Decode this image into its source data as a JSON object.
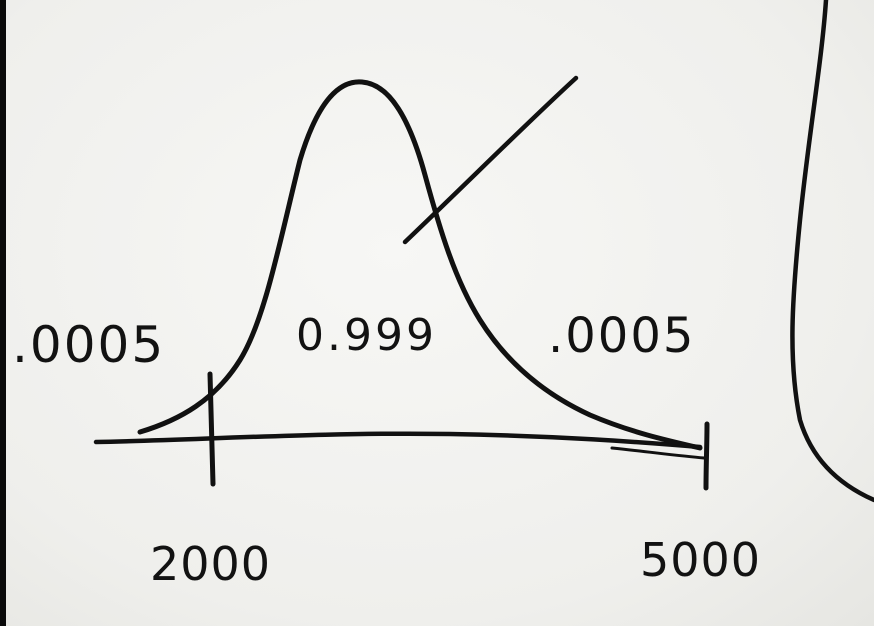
{
  "labels": {
    "left_tail": ".0005",
    "center": "0.999",
    "right_tail": ".0005",
    "left_bound": "2000",
    "right_bound": "5000"
  },
  "colors": {
    "ink": "#111111",
    "paper": "#f3f3f1"
  }
}
